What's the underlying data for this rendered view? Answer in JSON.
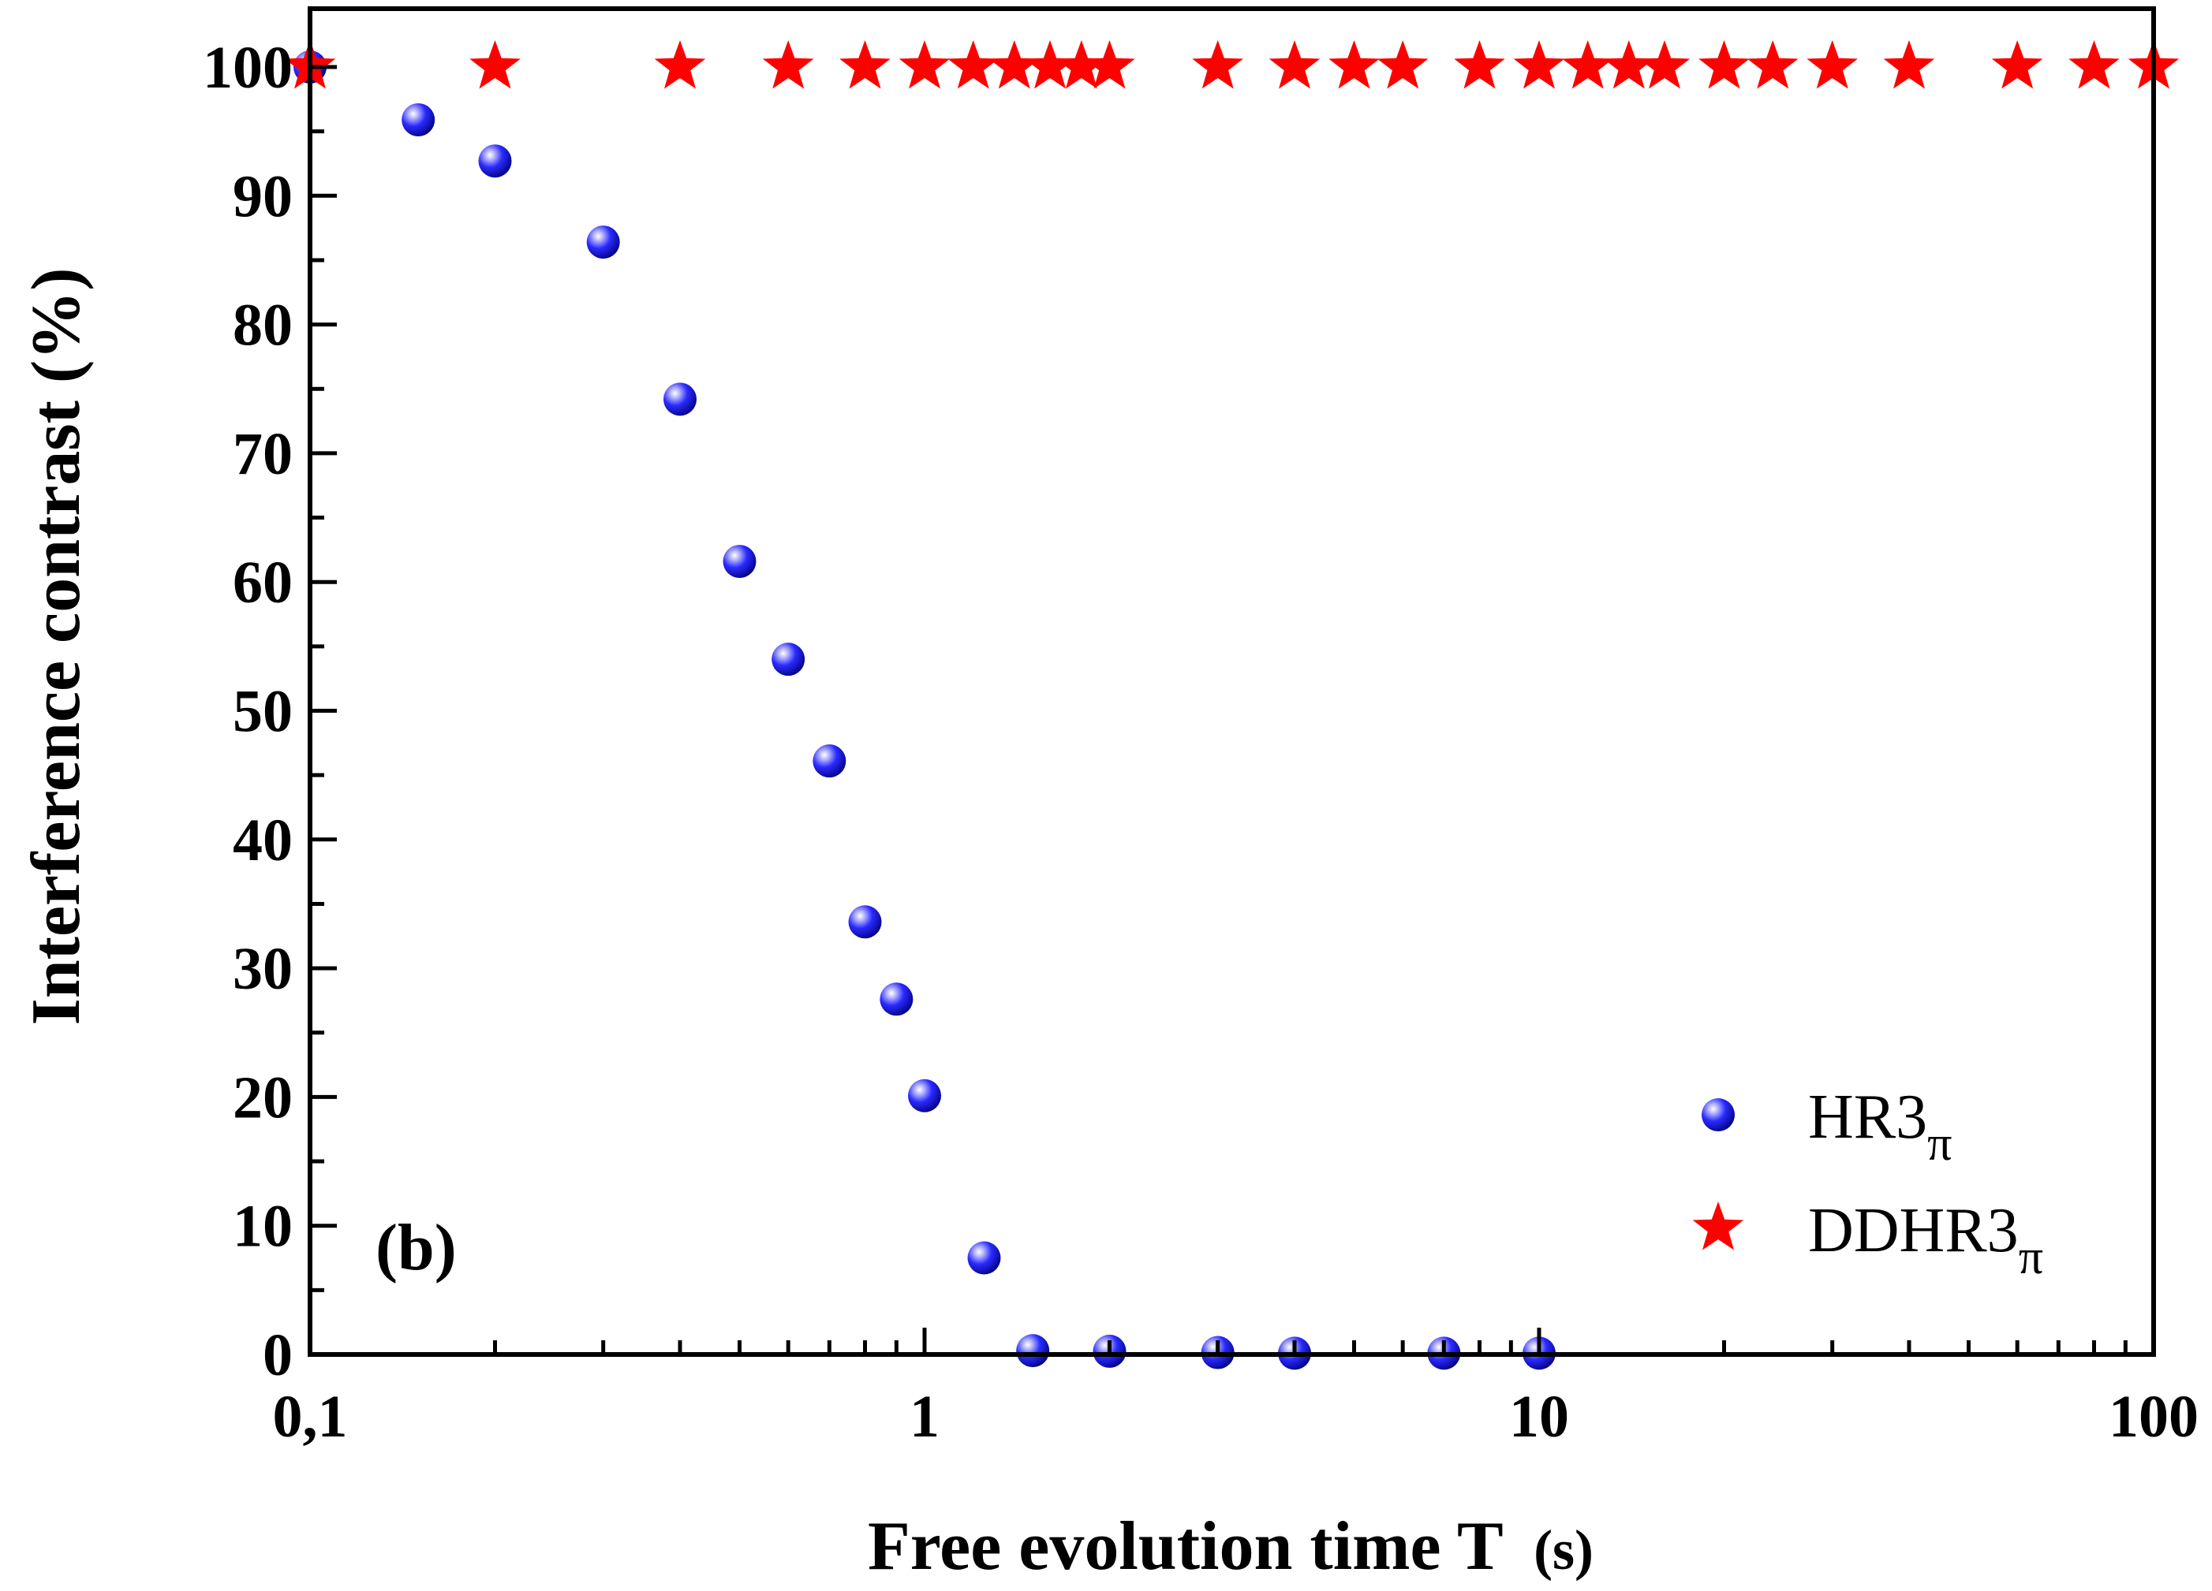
{
  "chart_data": {
    "type": "scatter",
    "title": "",
    "panel_label": "(b)",
    "xlabel": {
      "main": "Free evolution time T",
      "unit": "(s)"
    },
    "ylabel": "Interference contrast  (%)",
    "xscale": "log",
    "xlim": [
      0.1,
      100
    ],
    "ylim": [
      0,
      100
    ],
    "xticks": [
      {
        "value": 0.1,
        "label": "0,1"
      },
      {
        "value": 1,
        "label": "1"
      },
      {
        "value": 10,
        "label": "10"
      },
      {
        "value": 100,
        "label": "100"
      }
    ],
    "yticks": [
      {
        "value": 0,
        "label": "0"
      },
      {
        "value": 10,
        "label": "10"
      },
      {
        "value": 20,
        "label": "20"
      },
      {
        "value": 30,
        "label": "30"
      },
      {
        "value": 40,
        "label": "40"
      },
      {
        "value": 50,
        "label": "50"
      },
      {
        "value": 60,
        "label": "60"
      },
      {
        "value": 70,
        "label": "70"
      },
      {
        "value": 80,
        "label": "80"
      },
      {
        "value": 90,
        "label": "90"
      },
      {
        "value": 100,
        "label": "100"
      }
    ],
    "grid": false,
    "legend_position": "bottom-right",
    "series": [
      {
        "name": "HR3",
        "subscript": "π",
        "marker": "sphere",
        "color": "#1a1aff",
        "x": [
          0.1,
          0.15,
          0.2,
          0.3,
          0.4,
          0.5,
          0.6,
          0.7,
          0.8,
          0.9,
          1.0,
          1.25,
          1.5,
          2.0,
          3.0,
          4.0,
          7.0,
          10.0
        ],
        "y": [
          100,
          95.9,
          92.7,
          86.4,
          74.2,
          61.6,
          54.0,
          46.1,
          33.6,
          27.6,
          20.1,
          7.5,
          0.3,
          0.25,
          0.15,
          0.1,
          0.1,
          0.1
        ]
      },
      {
        "name": "DDHR3",
        "subscript": "π",
        "marker": "star",
        "color": "#ff0000",
        "x": [
          0.1,
          0.2,
          0.4,
          0.6,
          0.8,
          1.0,
          1.2,
          1.4,
          1.6,
          1.8,
          2.0,
          3.0,
          4.0,
          5.0,
          6.0,
          8.0,
          10.0,
          12.0,
          14.0,
          16.0,
          20.0,
          24.0,
          30.0,
          40.0,
          60.0,
          80.0,
          100.0
        ],
        "y": [
          100,
          100,
          100,
          100,
          100,
          100,
          100,
          100,
          100,
          100,
          100,
          100,
          100,
          100,
          100,
          100,
          100,
          100,
          100,
          100,
          100,
          100,
          100,
          100,
          100,
          100,
          100
        ]
      }
    ]
  }
}
